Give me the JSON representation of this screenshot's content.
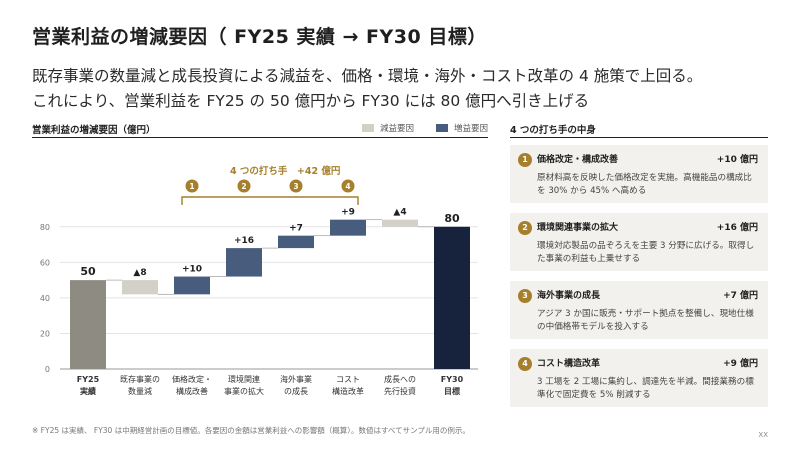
{
  "header": {
    "title": "営業利益の増減要因（ FY25 実績 → FY30 目標）",
    "subtitle_line1": "既存事業の数量減と成長投資による減益を、価格・環境・海外・コスト改革の 4 施策で上回る。",
    "subtitle_line2": "これにより、営業利益を FY25 の 50 億円から FY30 には 80 億円へ引き上げる"
  },
  "legend": {
    "decrease": "減益要因",
    "increase": "増益要因"
  },
  "colors": {
    "base": "#8e8b82",
    "decrease": "#d3d0c7",
    "increase": "#485c7e",
    "final": "#17233d",
    "accent": "#a57f2c"
  },
  "chart_data": {
    "type": "waterfall",
    "title": "営業利益の増減要因（億円）",
    "ylim": [
      0,
      90
    ],
    "yticks": [
      0,
      20,
      40,
      60,
      80
    ],
    "grid": true,
    "categories": [
      {
        "line1": "FY25",
        "line2": "実績"
      },
      {
        "line1": "既存事業の",
        "line2": "数量減"
      },
      {
        "line1": "価格改定・",
        "line2": "構成改善"
      },
      {
        "line1": "環境関連",
        "line2": "事業の拡大"
      },
      {
        "line1": "海外事業",
        "line2": "の成長"
      },
      {
        "line1": "コスト",
        "line2": "構造改革"
      },
      {
        "line1": "成長への",
        "line2": "先行投資"
      },
      {
        "line1": "FY30",
        "line2": "目標"
      }
    ],
    "steps": [
      {
        "kind": "total",
        "value": 50,
        "label": "50"
      },
      {
        "kind": "decrease",
        "value": -8,
        "label": "▲8"
      },
      {
        "kind": "increase",
        "value": 10,
        "label": "+10"
      },
      {
        "kind": "increase",
        "value": 16,
        "label": "+16"
      },
      {
        "kind": "increase",
        "value": 7,
        "label": "+7"
      },
      {
        "kind": "increase",
        "value": 9,
        "label": "+9"
      },
      {
        "kind": "decrease",
        "value": -4,
        "label": "▲4"
      },
      {
        "kind": "total",
        "value": 80,
        "label": "80"
      }
    ],
    "bracket": {
      "label": "4 つの打ち手　+42 億円",
      "markers": [
        "1",
        "2",
        "3",
        "4"
      ]
    }
  },
  "panel": {
    "title": "4 つの打ち手の中身",
    "cards": [
      {
        "num": "1",
        "title": "価格改定・構成改善",
        "value": "+10 億円",
        "desc": "原材料高を反映した価格改定を実施。高機能品の構成比を 30% から 45% へ高める"
      },
      {
        "num": "2",
        "title": "環境関連事業の拡大",
        "value": "+16 億円",
        "desc": "環境対応製品の品ぞろえを主要 3 分野に広げる。取得した事業の利益も上乗せする"
      },
      {
        "num": "3",
        "title": "海外事業の成長",
        "value": "+7 億円",
        "desc": "アジア 3 か国に販売・サポート拠点を整備し、現地仕様の中価格帯モデルを投入する"
      },
      {
        "num": "4",
        "title": "コスト構造改革",
        "value": "+9 億円",
        "desc": "3 工場を 2 工場に集約し、調達先を半減。間接業務の標準化で固定費を 5% 削減する"
      }
    ]
  },
  "footer": {
    "note": "※ FY25 は実績、 FY30 は中期経営計画の目標値。各要因の金額は営業利益への影響額（概算）。数値はすべてサンプル用の例示。",
    "page": "XX"
  }
}
